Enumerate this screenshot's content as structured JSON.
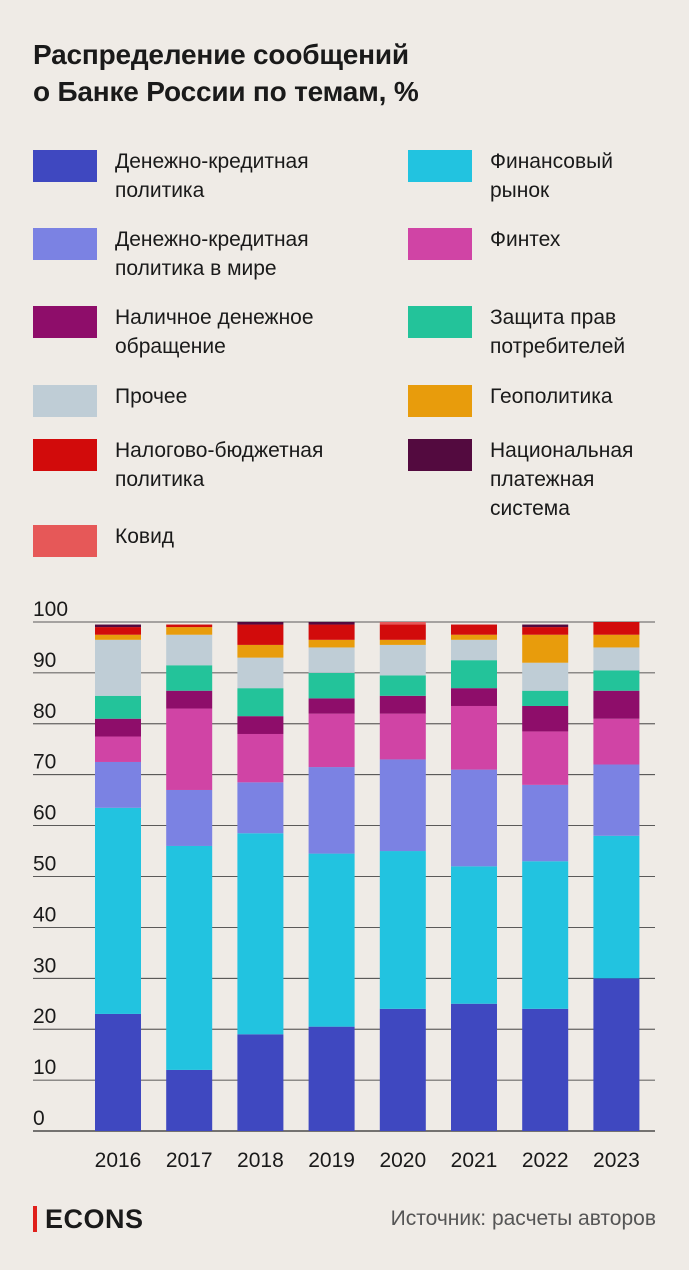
{
  "title": {
    "line1": "Распределение сообщений",
    "line2": "о Банке России по темам, %"
  },
  "legend": [
    {
      "lines": [
        "Денежно-кредитная",
        "политика"
      ],
      "color": "#3f48c0"
    },
    {
      "lines": [
        "Финансовый",
        "рынок"
      ],
      "color": "#22c3e0"
    },
    {
      "lines": [
        "Денежно-кредитная",
        "политика в мире"
      ],
      "color": "#7b82e3"
    },
    {
      "lines": [
        "Финтех"
      ],
      "color": "#d044a5"
    },
    {
      "lines": [
        "Наличное денежное",
        "обращение"
      ],
      "color": "#8e0d6a"
    },
    {
      "lines": [
        "Защита прав",
        "потребителей"
      ],
      "color": "#23c39a"
    },
    {
      "lines": [
        "Прочее"
      ],
      "color": "#bfcdd6"
    },
    {
      "lines": [
        "Геополитика"
      ],
      "color": "#e89c0c"
    },
    {
      "lines": [
        "Налогово-бюджетная",
        "политика"
      ],
      "color": "#d20b0b"
    },
    {
      "lines": [
        "Национальная",
        "платежная",
        "система"
      ],
      "color": "#530a3f"
    },
    {
      "lines": [
        "Ковид"
      ],
      "color": "#e65858"
    }
  ],
  "chart_data": {
    "type": "bar",
    "stacked": true,
    "categories": [
      "2016",
      "2017",
      "2018",
      "2019",
      "2020",
      "2021",
      "2022",
      "2023"
    ],
    "ylim": [
      0,
      100
    ],
    "yticks": [
      "0",
      "10",
      "20",
      "30",
      "40",
      "50",
      "60",
      "70",
      "80",
      "90",
      "100"
    ],
    "grid": true,
    "series": [
      {
        "name": "Денежно-кредитная политика",
        "color": "#3f48c0",
        "values": [
          23,
          12,
          19,
          20.5,
          24,
          25,
          24,
          30
        ]
      },
      {
        "name": "Финансовый рынок",
        "color": "#22c3e0",
        "values": [
          40.5,
          44,
          39.5,
          34,
          31,
          27,
          29,
          28
        ]
      },
      {
        "name": "Денежно-кредитная политика в мире",
        "color": "#7b82e3",
        "values": [
          9,
          11,
          10,
          17,
          18,
          19,
          15,
          14
        ]
      },
      {
        "name": "Финтех",
        "color": "#d044a5",
        "values": [
          5,
          16,
          9.5,
          10.5,
          9,
          12.5,
          10.5,
          9
        ]
      },
      {
        "name": "Наличное денежное обращение",
        "color": "#8e0d6a",
        "values": [
          3.5,
          3.5,
          3.5,
          3,
          3.5,
          3.5,
          5,
          5.5
        ]
      },
      {
        "name": "Защита прав потребителей",
        "color": "#23c39a",
        "values": [
          4.5,
          5,
          5.5,
          5,
          4,
          5.5,
          3,
          4
        ]
      },
      {
        "name": "Прочее",
        "color": "#bfcdd6",
        "values": [
          11,
          6,
          6,
          5,
          6,
          4,
          5.5,
          4.5
        ]
      },
      {
        "name": "Геополитика",
        "color": "#e89c0c",
        "values": [
          1,
          1.5,
          2.5,
          1.5,
          1,
          1,
          5.5,
          2.5
        ]
      },
      {
        "name": "Налогово-бюджетная политика",
        "color": "#d20b0b",
        "values": [
          1.5,
          0.5,
          4,
          3,
          3,
          2,
          1.5,
          2.5
        ]
      },
      {
        "name": "Национальная платежная система",
        "color": "#530a3f",
        "values": [
          0.5,
          0,
          0.5,
          0.5,
          0,
          0,
          0.5,
          0
        ]
      },
      {
        "name": "Ковид",
        "color": "#e65858",
        "values": [
          0,
          0,
          0,
          0,
          0.5,
          0,
          0,
          0
        ]
      }
    ]
  },
  "footer": {
    "brand": "ECONS",
    "brand_color": "#e0201b",
    "source": "Источник: расчеты авторов"
  }
}
